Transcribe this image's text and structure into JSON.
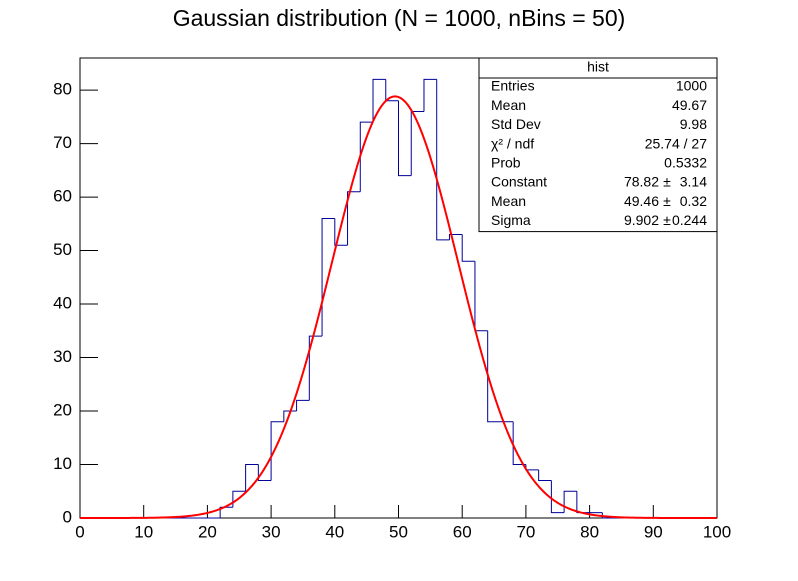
{
  "chart_data": {
    "type": "histogram",
    "title": "Gaussian distribution (N = 1000, nBins = 50)",
    "bins": [
      0,
      2,
      4,
      6,
      8,
      10,
      12,
      14,
      16,
      18,
      20,
      22,
      24,
      26,
      28,
      30,
      32,
      34,
      36,
      38,
      40,
      42,
      44,
      46,
      48,
      50,
      52,
      54,
      56,
      58,
      60,
      62,
      64,
      66,
      68,
      70,
      72,
      74,
      76,
      78,
      80,
      82,
      84,
      86,
      88,
      90,
      92,
      94,
      96,
      98,
      100
    ],
    "values": [
      0,
      0,
      0,
      0,
      0,
      0,
      0,
      0,
      0,
      0,
      0,
      2,
      5,
      10,
      7,
      18,
      20,
      22,
      34,
      56,
      51,
      61,
      74,
      82,
      78,
      64,
      76,
      82,
      52,
      53,
      48,
      35,
      18,
      18,
      10,
      9,
      7,
      1,
      5,
      1,
      1,
      0,
      0,
      0,
      0,
      0,
      0,
      0,
      0,
      0
    ],
    "color": "#000099",
    "fit": {
      "color": "#ff0000",
      "constant": 78.82,
      "mean": 49.46,
      "sigma": 9.902
    },
    "xlim": [
      0,
      100
    ],
    "xticks": [
      0,
      10,
      20,
      30,
      40,
      50,
      60,
      70,
      80,
      90,
      100
    ],
    "ylim": [
      0,
      86
    ],
    "yticks": [
      0,
      10,
      20,
      30,
      40,
      50,
      60,
      70,
      80
    ],
    "stats": {
      "title": "hist",
      "plus_minus": "±",
      "rows": [
        {
          "label": "Entries",
          "value": 1000
        },
        {
          "label": "Mean",
          "value": 49.67
        },
        {
          "label": "Std Dev",
          "value": 9.98
        },
        {
          "label": "χ² / ndf",
          "value": "25.74 / 27"
        },
        {
          "label": "Prob",
          "value": 0.5332
        },
        {
          "label": "Constant",
          "value": 78.82,
          "error": 3.14
        },
        {
          "label": "Mean",
          "value": 49.46,
          "error": 0.32
        },
        {
          "label": "Sigma",
          "value": 9.902,
          "error": 0.244
        }
      ]
    }
  }
}
